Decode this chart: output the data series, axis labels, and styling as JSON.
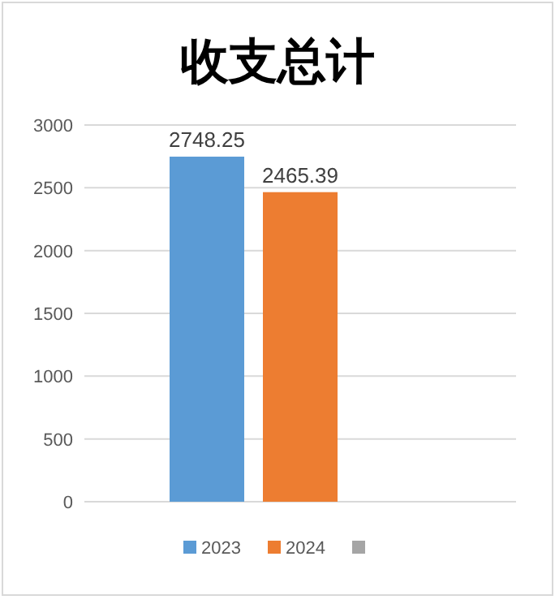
{
  "chart_data": {
    "type": "bar",
    "title": "收支总计",
    "categories": [
      null
    ],
    "series": [
      {
        "name": "2023",
        "color": "#5b9bd5",
        "values": [
          2748.25
        ]
      },
      {
        "name": "2024",
        "color": "#ed7d31",
        "values": [
          2465.39
        ]
      },
      {
        "color": "#a5a5a5",
        "values": [
          null
        ]
      }
    ],
    "ylim": [
      0,
      3000
    ],
    "yticks": [
      0,
      500,
      1000,
      1500,
      2000,
      2500,
      3000
    ],
    "grid": "y",
    "data_labels": true,
    "legend": "bottom"
  }
}
